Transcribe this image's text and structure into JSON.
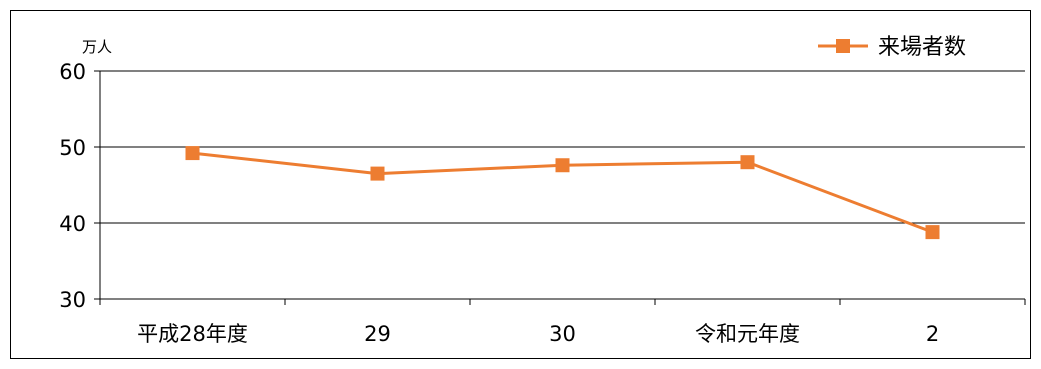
{
  "chart_data": {
    "type": "line",
    "ylabel": "万人",
    "categories": [
      "平成28年度",
      "29",
      "30",
      "令和元年度",
      "2"
    ],
    "ylim": [
      30,
      60
    ],
    "yticks": [
      30,
      40,
      50,
      60
    ],
    "grid": true,
    "legend": "top-right",
    "series": [
      {
        "name": "来場者数",
        "values": [
          49.2,
          46.5,
          47.6,
          48.0,
          38.8
        ],
        "color": "#ED7D31",
        "marker": "square"
      }
    ]
  }
}
